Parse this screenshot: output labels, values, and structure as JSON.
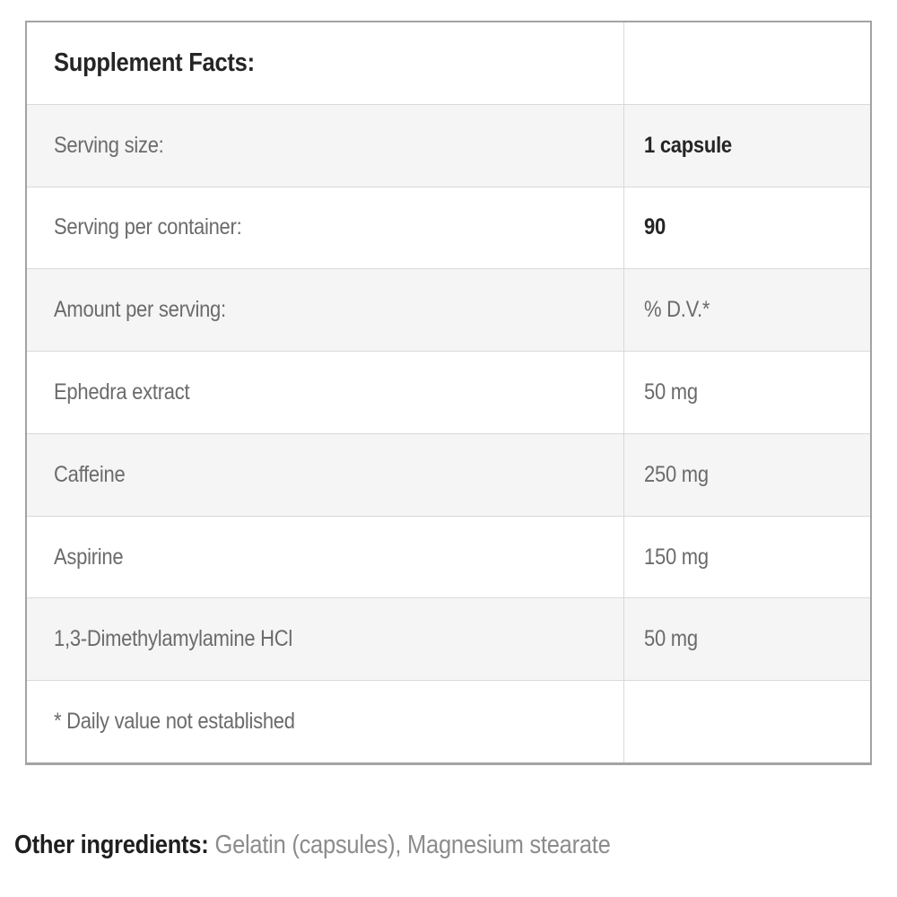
{
  "colors": {
    "outer_border": "#a3a3a3",
    "grid_line": "#d9d9d9",
    "shaded_row_bg": "#f5f5f6",
    "text_dark": "#252525",
    "text_gray": "#6b6b6b",
    "footer_gray": "#8c8c8c"
  },
  "table": {
    "title": "Supplement Facts:",
    "rows": [
      {
        "label": "Serving size:",
        "value": "1 capsule",
        "value_bold": true,
        "shaded": true
      },
      {
        "label": "Serving per container:",
        "value": "90",
        "value_bold": true,
        "shaded": false
      },
      {
        "label": "Amount per serving:",
        "value": "% D.V.*",
        "value_bold": false,
        "shaded": true
      },
      {
        "label": "Ephedra extract",
        "value": "50 mg",
        "value_bold": false,
        "shaded": false
      },
      {
        "label": "Caffeine",
        "value": "250 mg",
        "value_bold": false,
        "shaded": true
      },
      {
        "label": "Aspirine",
        "value": "150 mg",
        "value_bold": false,
        "shaded": false
      },
      {
        "label": "1,3-Dimethylamylamine HCl",
        "value": "50 mg",
        "value_bold": false,
        "shaded": true
      },
      {
        "label": "* Daily value not established",
        "value": "",
        "value_bold": false,
        "shaded": false
      }
    ]
  },
  "footer": {
    "label": "Other ingredients:",
    "value": "Gelatin (capsules), Magnesium stearate"
  }
}
